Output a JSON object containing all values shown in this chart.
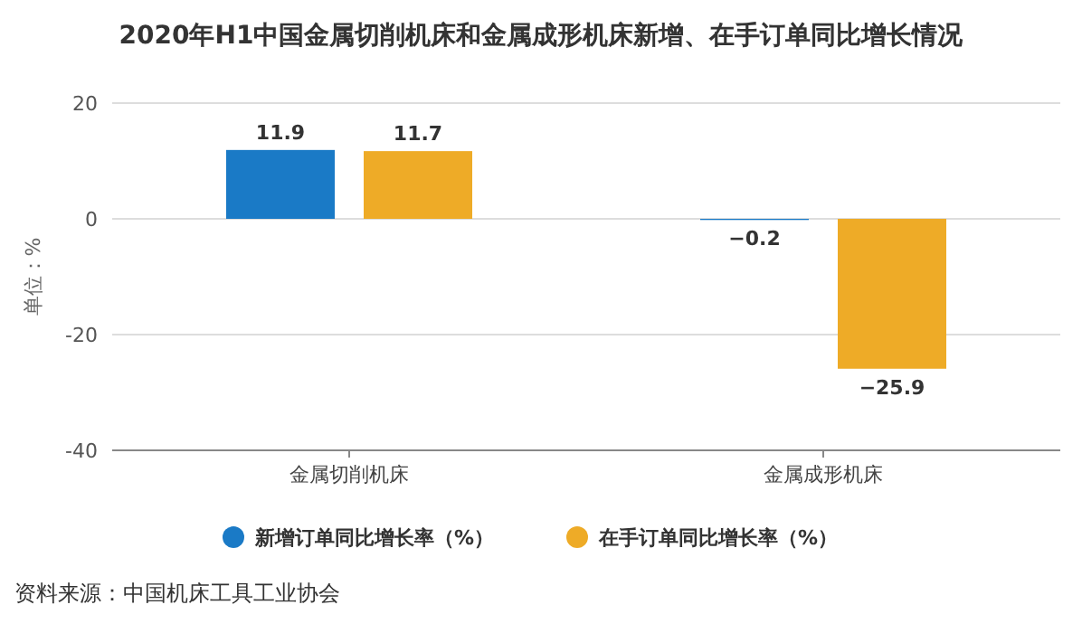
{
  "chart_data": {
    "type": "bar",
    "title": "2020年H1中国金属切削机床和金属成形机床新增、在手订单同比增长情况",
    "ylabel": "单位：%",
    "categories": [
      "金属切削机床",
      "金属成形机床"
    ],
    "series": [
      {
        "name": "新增订单同比增长率（%）",
        "color": "#1a7ac6",
        "values": [
          11.9,
          -0.2
        ]
      },
      {
        "name": "在手订单同比增长率（%）",
        "color": "#eeab27",
        "values": [
          11.7,
          -25.9
        ]
      }
    ],
    "ylim": [
      -40,
      20
    ],
    "yticks": [
      -40,
      -20,
      0,
      20
    ],
    "grid": "y",
    "legend": "bottom",
    "data_labels": true,
    "annotations": [
      "资料来源：中国机床工具工业协会"
    ]
  }
}
